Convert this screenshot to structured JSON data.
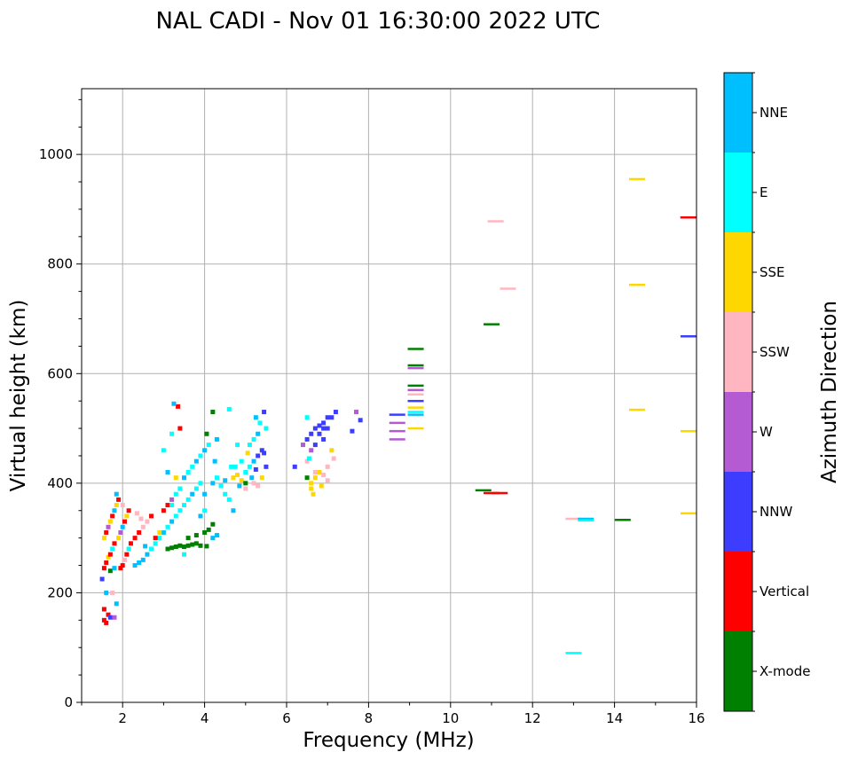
{
  "chart_data": {
    "type": "scatter",
    "title": "NAL CADI - Nov 01 16:30:00 2022 UTC",
    "xlabel": "Frequency (MHz)",
    "ylabel": "Virtual height (km)",
    "xlim": [
      1,
      16
    ],
    "ylim": [
      0,
      1120
    ],
    "xticks": [
      2,
      4,
      6,
      8,
      10,
      12,
      14,
      16
    ],
    "yticks": [
      0,
      200,
      400,
      600,
      800,
      1000
    ],
    "grid": true,
    "colorbar": {
      "label": "Azimuth Direction",
      "categories": [
        {
          "name": "X-mode",
          "color": "#008000"
        },
        {
          "name": "Vertical",
          "color": "#ff0000"
        },
        {
          "name": "NNW",
          "color": "#3d3dff"
        },
        {
          "name": "W",
          "color": "#b45ad2"
        },
        {
          "name": "SSW",
          "color": "#ffb6c1"
        },
        {
          "name": "SSE",
          "color": "#ffd700"
        },
        {
          "name": "E",
          "color": "#00ffff"
        },
        {
          "name": "NNE",
          "color": "#00bfff"
        }
      ]
    },
    "points": [
      [
        1.55,
        150,
        "Vertical"
      ],
      [
        1.6,
        145,
        "Vertical"
      ],
      [
        1.65,
        160,
        "Vertical"
      ],
      [
        1.55,
        170,
        "Vertical"
      ],
      [
        1.7,
        155,
        "NNW"
      ],
      [
        1.8,
        155,
        "W"
      ],
      [
        1.85,
        180,
        "NNE"
      ],
      [
        1.5,
        225,
        "NNW"
      ],
      [
        1.75,
        200,
        "SSW"
      ],
      [
        1.6,
        200,
        "NNE"
      ],
      [
        1.55,
        245,
        "Vertical"
      ],
      [
        1.6,
        255,
        "Vertical"
      ],
      [
        1.65,
        265,
        "SSE"
      ],
      [
        1.7,
        270,
        "Vertical"
      ],
      [
        1.75,
        280,
        "E"
      ],
      [
        1.8,
        290,
        "Vertical"
      ],
      [
        1.55,
        300,
        "SSE"
      ],
      [
        1.6,
        310,
        "Vertical"
      ],
      [
        1.65,
        320,
        "W"
      ],
      [
        1.7,
        330,
        "SSE"
      ],
      [
        1.75,
        340,
        "Vertical"
      ],
      [
        1.8,
        350,
        "NNE"
      ],
      [
        1.85,
        360,
        "SSE"
      ],
      [
        1.9,
        370,
        "Vertical"
      ],
      [
        1.95,
        245,
        "Vertical"
      ],
      [
        2.0,
        250,
        "Vertical"
      ],
      [
        2.05,
        260,
        "SSW"
      ],
      [
        2.1,
        270,
        "Vertical"
      ],
      [
        2.15,
        280,
        "E"
      ],
      [
        2.2,
        290,
        "Vertical"
      ],
      [
        1.9,
        300,
        "SSE"
      ],
      [
        1.95,
        310,
        "W"
      ],
      [
        2.0,
        320,
        "NNE"
      ],
      [
        2.05,
        330,
        "Vertical"
      ],
      [
        2.1,
        340,
        "SSE"
      ],
      [
        2.15,
        350,
        "Vertical"
      ],
      [
        1.85,
        380,
        "NNE"
      ],
      [
        2.0,
        360,
        "SSW"
      ],
      [
        1.7,
        240,
        "X-mode"
      ],
      [
        1.8,
        245,
        "NNE"
      ],
      [
        2.3,
        250,
        "NNE"
      ],
      [
        2.4,
        255,
        "NNE"
      ],
      [
        2.5,
        260,
        "NNE"
      ],
      [
        2.6,
        270,
        "NNE"
      ],
      [
        2.7,
        280,
        "E"
      ],
      [
        2.8,
        290,
        "E"
      ],
      [
        2.9,
        300,
        "E"
      ],
      [
        3.0,
        310,
        "NNE"
      ],
      [
        3.1,
        320,
        "E"
      ],
      [
        3.2,
        330,
        "NNE"
      ],
      [
        3.3,
        340,
        "E"
      ],
      [
        3.4,
        350,
        "E"
      ],
      [
        3.5,
        360,
        "E"
      ],
      [
        3.6,
        370,
        "E"
      ],
      [
        3.7,
        380,
        "NNE"
      ],
      [
        3.8,
        390,
        "E"
      ],
      [
        3.9,
        400,
        "E"
      ],
      [
        2.3,
        300,
        "Vertical"
      ],
      [
        2.4,
        310,
        "Vertical"
      ],
      [
        2.5,
        320,
        "SSW"
      ],
      [
        2.6,
        330,
        "SSW"
      ],
      [
        2.7,
        340,
        "Vertical"
      ],
      [
        2.8,
        300,
        "Vertical"
      ],
      [
        2.9,
        310,
        "SSE"
      ],
      [
        3.0,
        350,
        "Vertical"
      ],
      [
        3.1,
        360,
        "Vertical"
      ],
      [
        3.2,
        370,
        "W"
      ],
      [
        2.35,
        345,
        "SSW"
      ],
      [
        2.45,
        335,
        "SSW"
      ],
      [
        2.55,
        285,
        "NNE"
      ],
      [
        3.1,
        280,
        "X-mode"
      ],
      [
        3.2,
        282,
        "X-mode"
      ],
      [
        3.3,
        284,
        "X-mode"
      ],
      [
        3.4,
        286,
        "X-mode"
      ],
      [
        3.5,
        284,
        "X-mode"
      ],
      [
        3.6,
        286,
        "X-mode"
      ],
      [
        3.7,
        288,
        "X-mode"
      ],
      [
        3.8,
        290,
        "X-mode"
      ],
      [
        3.9,
        286,
        "X-mode"
      ],
      [
        4.05,
        285,
        "X-mode"
      ],
      [
        3.6,
        300,
        "X-mode"
      ],
      [
        3.8,
        305,
        "X-mode"
      ],
      [
        4.0,
        310,
        "X-mode"
      ],
      [
        4.1,
        315,
        "X-mode"
      ],
      [
        4.2,
        325,
        "X-mode"
      ],
      [
        3.9,
        340,
        "NNE"
      ],
      [
        4.0,
        350,
        "E"
      ],
      [
        4.2,
        300,
        "NNE"
      ],
      [
        4.3,
        305,
        "NNE"
      ],
      [
        3.5,
        270,
        "E"
      ],
      [
        3.3,
        380,
        "E"
      ],
      [
        3.4,
        390,
        "E"
      ],
      [
        3.5,
        410,
        "NNE"
      ],
      [
        3.6,
        420,
        "E"
      ],
      [
        3.7,
        430,
        "E"
      ],
      [
        3.8,
        440,
        "NNE"
      ],
      [
        3.9,
        450,
        "E"
      ],
      [
        4.0,
        460,
        "NNE"
      ],
      [
        4.1,
        470,
        "E"
      ],
      [
        3.2,
        360,
        "E"
      ],
      [
        3.35,
        540,
        "Vertical"
      ],
      [
        3.25,
        545,
        "NNE"
      ],
      [
        3.4,
        500,
        "Vertical"
      ],
      [
        3.2,
        490,
        "E"
      ],
      [
        3.0,
        460,
        "E"
      ],
      [
        3.1,
        420,
        "NNE"
      ],
      [
        3.3,
        410,
        "SSE"
      ],
      [
        4.05,
        490,
        "X-mode"
      ],
      [
        4.2,
        530,
        "X-mode"
      ],
      [
        4.3,
        480,
        "NNE"
      ],
      [
        4.2,
        400,
        "NNE"
      ],
      [
        4.3,
        410,
        "E"
      ],
      [
        4.4,
        395,
        "E"
      ],
      [
        4.5,
        405,
        "NNE"
      ],
      [
        4.6,
        370,
        "E"
      ],
      [
        4.7,
        350,
        "NNE"
      ],
      [
        4.25,
        440,
        "NNE"
      ],
      [
        4.5,
        380,
        "E"
      ],
      [
        4.0,
        380,
        "NNE"
      ],
      [
        4.75,
        430,
        "E"
      ],
      [
        4.7,
        410,
        "SSE"
      ],
      [
        4.8,
        415,
        "SSE"
      ],
      [
        4.9,
        405,
        "SSE"
      ],
      [
        5.0,
        420,
        "E"
      ],
      [
        5.1,
        430,
        "E"
      ],
      [
        5.2,
        440,
        "NNE"
      ],
      [
        5.3,
        450,
        "NNW"
      ],
      [
        5.4,
        460,
        "NNW"
      ],
      [
        5.2,
        400,
        "SSW"
      ],
      [
        5.3,
        395,
        "SSW"
      ],
      [
        5.4,
        410,
        "SSE"
      ],
      [
        5.1,
        470,
        "E"
      ],
      [
        5.2,
        480,
        "E"
      ],
      [
        5.3,
        490,
        "NNE"
      ],
      [
        5.35,
        510,
        "E"
      ],
      [
        5.25,
        520,
        "NNE"
      ],
      [
        5.45,
        530,
        "NNW"
      ],
      [
        5.0,
        390,
        "SSW"
      ],
      [
        5.15,
        410,
        "NNE"
      ],
      [
        4.9,
        440,
        "E"
      ],
      [
        4.6,
        535,
        "E"
      ],
      [
        5.0,
        400,
        "X-mode"
      ],
      [
        5.5,
        430,
        "NNW"
      ],
      [
        5.5,
        500,
        "E"
      ],
      [
        4.8,
        470,
        "E"
      ],
      [
        5.05,
        455,
        "SSE"
      ],
      [
        4.65,
        430,
        "E"
      ],
      [
        4.85,
        395,
        "NNE"
      ],
      [
        5.25,
        425,
        "NNW"
      ],
      [
        5.45,
        455,
        "NNW"
      ],
      [
        6.2,
        430,
        "NNW"
      ],
      [
        6.5,
        440,
        "SSW"
      ],
      [
        6.6,
        400,
        "SSE"
      ],
      [
        6.7,
        410,
        "SSE"
      ],
      [
        6.8,
        420,
        "SSE"
      ],
      [
        6.9,
        415,
        "SSW"
      ],
      [
        7.0,
        405,
        "SSW"
      ],
      [
        6.6,
        390,
        "SSE"
      ],
      [
        6.7,
        420,
        "SSW"
      ],
      [
        6.5,
        410,
        "X-mode"
      ],
      [
        6.5,
        480,
        "NNW"
      ],
      [
        6.6,
        490,
        "NNW"
      ],
      [
        6.7,
        500,
        "NNW"
      ],
      [
        6.8,
        505,
        "NNW"
      ],
      [
        6.9,
        510,
        "NNW"
      ],
      [
        7.0,
        500,
        "NNW"
      ],
      [
        6.8,
        490,
        "NNW"
      ],
      [
        6.9,
        480,
        "NNW"
      ],
      [
        7.0,
        520,
        "NNW"
      ],
      [
        6.7,
        470,
        "NNW"
      ],
      [
        6.6,
        460,
        "W"
      ],
      [
        6.5,
        520,
        "E"
      ],
      [
        7.1,
        520,
        "NNW"
      ],
      [
        7.2,
        530,
        "NNW"
      ],
      [
        7.1,
        460,
        "SSE"
      ],
      [
        7.15,
        445,
        "SSW"
      ],
      [
        7.7,
        530,
        "W"
      ],
      [
        7.8,
        515,
        "NNW"
      ],
      [
        7.6,
        495,
        "NNW"
      ],
      [
        6.4,
        470,
        "W"
      ],
      [
        6.65,
        380,
        "SSE"
      ],
      [
        6.85,
        395,
        "SSE"
      ],
      [
        7.0,
        430,
        "SSW"
      ],
      [
        6.55,
        445,
        "E"
      ],
      [
        6.9,
        500,
        "NNW"
      ],
      [
        8.7,
        525,
        "NNW"
      ],
      [
        8.7,
        510,
        "W"
      ],
      [
        8.7,
        495,
        "W"
      ],
      [
        8.7,
        480,
        "W"
      ],
      [
        9.15,
        645,
        "X-mode"
      ],
      [
        9.15,
        615,
        "X-mode"
      ],
      [
        9.15,
        610,
        "W"
      ],
      [
        9.15,
        578,
        "X-mode"
      ],
      [
        9.15,
        570,
        "W"
      ],
      [
        9.15,
        562,
        "SSW"
      ],
      [
        9.15,
        550,
        "NNW"
      ],
      [
        9.15,
        538,
        "SSE"
      ],
      [
        9.15,
        530,
        "E"
      ],
      [
        9.15,
        525,
        "NNE"
      ],
      [
        9.15,
        500,
        "SSE"
      ],
      [
        10.8,
        387,
        "X-mode"
      ],
      [
        11.0,
        382,
        "Vertical"
      ],
      [
        11.2,
        382,
        "Vertical"
      ],
      [
        11.0,
        690,
        "X-mode"
      ],
      [
        11.1,
        878,
        "SSW"
      ],
      [
        11.4,
        755,
        "SSW"
      ],
      [
        13.0,
        335,
        "SSW"
      ],
      [
        13.3,
        335,
        "NNE"
      ],
      [
        13.3,
        332,
        "E"
      ],
      [
        13.0,
        90,
        "E"
      ],
      [
        14.2,
        333,
        "X-mode"
      ],
      [
        14.55,
        955,
        "SSE"
      ],
      [
        14.55,
        762,
        "SSE"
      ],
      [
        14.55,
        534,
        "SSE"
      ],
      [
        15.8,
        885,
        "Vertical"
      ],
      [
        16.0,
        668,
        "NNW"
      ],
      [
        16.0,
        495,
        "SSE"
      ],
      [
        16.0,
        345,
        "SSE"
      ]
    ]
  }
}
